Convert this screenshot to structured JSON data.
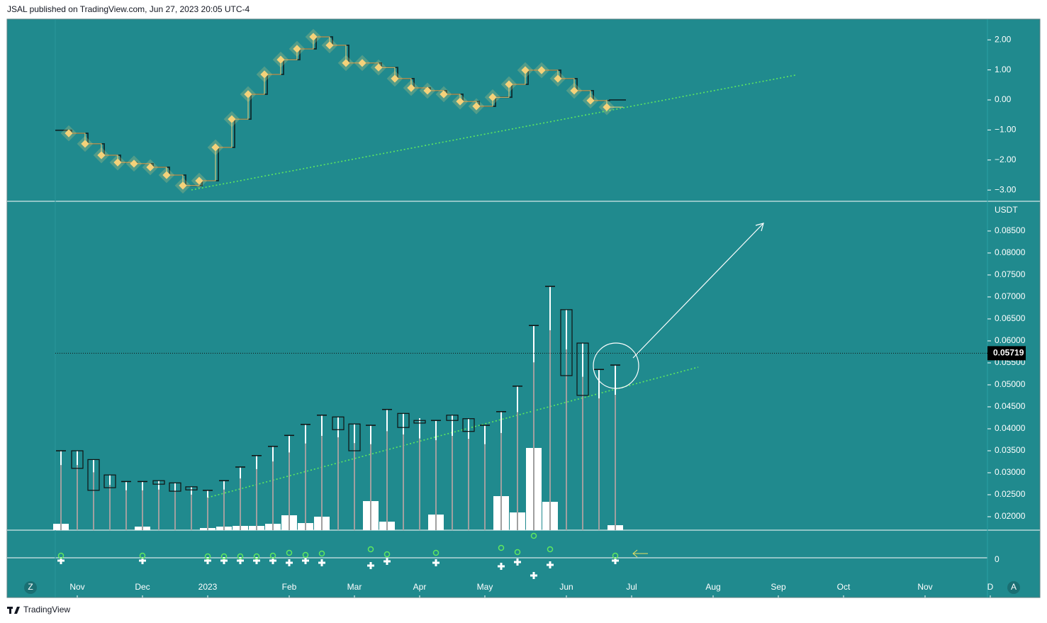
{
  "header": {
    "text": "JSAL published on TradingView.com, Jun 27, 2023 20:05 UTC-4"
  },
  "footer": {
    "brand": "TradingView"
  },
  "buttons": {
    "left": "Z",
    "right": "A"
  },
  "chart_data": [
    {
      "type": "line",
      "series": [
        {
          "color": "#f5d27a",
          "values": [
            -1.11,
            -1.46,
            -1.84,
            -2.08,
            -2.12,
            -2.24,
            -2.5,
            -2.85,
            -2.69,
            -1.58,
            -0.64,
            0.19,
            0.85,
            1.34,
            1.7,
            2.1,
            1.82,
            1.23,
            1.23,
            1.08,
            0.71,
            0.4,
            0.31,
            0.19,
            -0.05,
            -0.21,
            0.09,
            0.52,
            0.99,
            0.99,
            0.71,
            0.31,
            -0.02,
            -0.24
          ]
        },
        {
          "color": "#0d2b2e",
          "values": [
            -1.01,
            -1.11,
            -1.46,
            -1.84,
            -2.08,
            -2.12,
            -2.24,
            -2.5,
            -2.85,
            -2.69,
            -1.58,
            -0.64,
            0.19,
            0.85,
            1.34,
            1.7,
            2.1,
            1.82,
            1.23,
            1.23,
            1.08,
            0.71,
            0.4,
            0.31,
            0.19,
            -0.05,
            -0.21,
            0.09,
            0.52,
            0.99,
            0.99,
            0.71,
            0.31,
            -0.02,
            0.0
          ]
        }
      ],
      "ylim": [
        -3.35,
        2.69
      ],
      "yticks": [
        {
          "value": 2,
          "label": "2.00"
        },
        {
          "value": 1,
          "label": "1.00"
        },
        {
          "value": 0,
          "label": "0.00"
        },
        {
          "value": -1,
          "label": "−1.00"
        },
        {
          "value": -2,
          "label": "−2.00"
        },
        {
          "value": -3,
          "label": "−3.00"
        }
      ]
    },
    {
      "type": "candlestick",
      "y_unit": "USDT",
      "open": [
        0.035,
        0.035,
        0.033,
        0.0295,
        0.028,
        0.028,
        0.0282,
        0.0277,
        0.0268,
        0.026,
        0.0282,
        0.0313,
        0.0339,
        0.036,
        0.0385,
        0.041,
        0.0431,
        0.0427,
        0.0411,
        0.0408,
        0.0444,
        0.0435,
        0.0419,
        0.0419,
        0.0431,
        0.0423,
        0.0408,
        0.0439,
        0.0497,
        0.0635,
        0.0724,
        0.0671,
        0.0595,
        0.0535,
        0.0545
      ],
      "close": [
        0.035,
        0.031,
        0.026,
        0.0266,
        0.028,
        0.028,
        0.0274,
        0.0258,
        0.0261,
        0.026,
        0.0282,
        0.0313,
        0.0339,
        0.036,
        0.0385,
        0.041,
        0.0431,
        0.0398,
        0.035,
        0.0408,
        0.0444,
        0.0403,
        0.0413,
        0.0419,
        0.0419,
        0.0394,
        0.0408,
        0.0439,
        0.0497,
        0.0635,
        0.0724,
        0.0521,
        0.0476,
        0.0535,
        0.0545
      ],
      "high": [
        0.035,
        0.035,
        0.033,
        0.0295,
        0.028,
        0.028,
        0.0282,
        0.0277,
        0.0268,
        0.026,
        0.0282,
        0.0313,
        0.0339,
        0.036,
        0.0385,
        0.041,
        0.0431,
        0.0427,
        0.0411,
        0.0408,
        0.0444,
        0.0435,
        0.0424,
        0.0419,
        0.0431,
        0.0423,
        0.0408,
        0.0439,
        0.0497,
        0.0635,
        0.0724,
        0.0671,
        0.0595,
        0.0535,
        0.0545
      ],
      "volume": [
        9,
        0,
        0,
        0,
        0,
        5,
        0,
        0,
        0,
        3,
        5,
        6,
        6,
        9,
        21,
        10,
        19,
        0,
        0,
        41,
        12,
        0,
        0,
        22,
        0,
        0,
        0,
        48,
        25,
        116,
        40,
        0,
        0,
        0,
        7
      ],
      "volume_lim": [
        0,
        463
      ],
      "last_price": 0.05719,
      "ylim": [
        0.01694,
        0.0916
      ],
      "yticks": [
        {
          "value": 0.085,
          "label": "0.08500"
        },
        {
          "value": 0.08,
          "label": "0.08000"
        },
        {
          "value": 0.075,
          "label": "0.07500"
        },
        {
          "value": 0.07,
          "label": "0.07000"
        },
        {
          "value": 0.065,
          "label": "0.06500"
        },
        {
          "value": 0.06,
          "label": "0.06000"
        },
        {
          "value": 0.055,
          "label": "0.05500"
        },
        {
          "value": 0.05,
          "label": "0.05000"
        },
        {
          "value": 0.045,
          "label": "0.04500"
        },
        {
          "value": 0.04,
          "label": "0.04000"
        },
        {
          "value": 0.035,
          "label": "0.03500"
        },
        {
          "value": 0.03,
          "label": "0.03000"
        },
        {
          "value": 0.025,
          "label": "0.02500"
        },
        {
          "value": 0.02,
          "label": "0.02000"
        }
      ],
      "xticks": [
        {
          "value": 1,
          "label": "Nov"
        },
        {
          "value": 5,
          "label": "Dec"
        },
        {
          "value": 9,
          "label": "2023"
        },
        {
          "value": 14,
          "label": "Feb"
        },
        {
          "value": 18,
          "label": "Mar"
        },
        {
          "value": 22,
          "label": "Apr"
        },
        {
          "value": 26,
          "label": "May"
        },
        {
          "value": 31,
          "label": "Jun"
        },
        {
          "value": 35,
          "label": "Jul"
        },
        {
          "value": 40,
          "label": "Aug"
        },
        {
          "value": 44,
          "label": "Sep"
        },
        {
          "value": 48,
          "label": "Oct"
        },
        {
          "value": 53,
          "label": "Nov"
        },
        {
          "value": 57,
          "label": "D"
        }
      ]
    },
    {
      "type": "signals",
      "yticks": [
        0
      ]
    }
  ]
}
